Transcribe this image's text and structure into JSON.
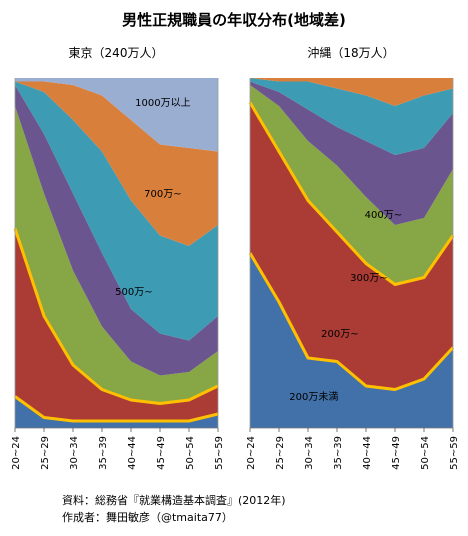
{
  "title": "男性正規職員の年収分布(地域差)",
  "source_line1": "資料：総務省『就業構造基本調査』(2012年)",
  "source_line2": "作成者：舞田敏彦（@tmaita77）",
  "colors": {
    "band_0": "#4270a8",
    "band_1": "#ab3c35",
    "band_2": "#87a645",
    "band_3": "#6b558e",
    "band_4": "#3d9bb3",
    "band_5": "#d97f3c",
    "band_6": "#9aaed2",
    "highlight": "#ffc000",
    "grid": "#cfcfcf"
  },
  "chart_data": [
    {
      "type": "area",
      "title": "東京（240万人）",
      "stacked": true,
      "percent": true,
      "categories": [
        "20~24",
        "25~29",
        "30~34",
        "35~39",
        "40~44",
        "45~49",
        "50~54",
        "55~59"
      ],
      "ylim": [
        0,
        100
      ],
      "series": [
        {
          "name": "200万未満",
          "values": [
            9,
            3,
            2,
            2,
            2,
            2,
            2,
            4
          ]
        },
        {
          "name": "200万~",
          "values": [
            48,
            29,
            16,
            9,
            6,
            5,
            6,
            8
          ]
        },
        {
          "name": "300万~",
          "values": [
            35,
            35,
            27,
            18,
            11,
            8,
            8,
            10
          ]
        },
        {
          "name": "400万~",
          "values": [
            6,
            17,
            22,
            21,
            15,
            12,
            9,
            10
          ]
        },
        {
          "name": "500万~",
          "values": [
            1,
            12,
            21,
            29,
            31,
            28,
            27,
            26
          ]
        },
        {
          "name": "700万~",
          "values": [
            0,
            3,
            10,
            16,
            23,
            26,
            28,
            21
          ]
        },
        {
          "name": "1000万以上",
          "values": [
            1,
            1,
            2,
            5,
            12,
            19,
            20,
            21
          ]
        }
      ],
      "band_labels": [
        {
          "series": 6,
          "text": "1000万以上",
          "x": 5.1,
          "y": 92
        },
        {
          "series": 5,
          "text": "700万~",
          "x": 5.1,
          "y": 66
        },
        {
          "series": 4,
          "text": "500万~",
          "x": 4.1,
          "y": 38
        }
      ]
    },
    {
      "type": "area",
      "title": "沖縄（18万人）",
      "stacked": true,
      "percent": true,
      "categories": [
        "20~24",
        "25~29",
        "30~34",
        "35~39",
        "40~44",
        "45~49",
        "50~54",
        "55~59"
      ],
      "ylim": [
        0,
        100
      ],
      "series": [
        {
          "name": "200万未満",
          "values": [
            50,
            36,
            20,
            19,
            12,
            11,
            14,
            23
          ]
        },
        {
          "name": "200万~",
          "values": [
            43,
            43,
            45,
            37,
            35,
            30,
            29,
            32
          ]
        },
        {
          "name": "300万~",
          "values": [
            5,
            13,
            17,
            19,
            19,
            17,
            17,
            19
          ]
        },
        {
          "name": "400万~",
          "values": [
            1,
            4,
            9,
            11,
            16,
            20,
            20,
            16
          ]
        },
        {
          "name": "500万~",
          "values": [
            1,
            3,
            8,
            11,
            13,
            14,
            15,
            7
          ]
        },
        {
          "name": "700万~",
          "values": [
            0,
            1,
            1,
            3,
            5,
            8,
            5,
            3
          ]
        }
      ],
      "band_labels": [
        {
          "series": 0,
          "text": "200万未満",
          "x": 2.2,
          "y": 8
        },
        {
          "series": 1,
          "text": "200万~",
          "x": 3.1,
          "y": 26
        },
        {
          "series": 2,
          "text": "300万~",
          "x": 4.1,
          "y": 42
        },
        {
          "series": 3,
          "text": "400万~",
          "x": 4.6,
          "y": 60
        }
      ]
    }
  ]
}
